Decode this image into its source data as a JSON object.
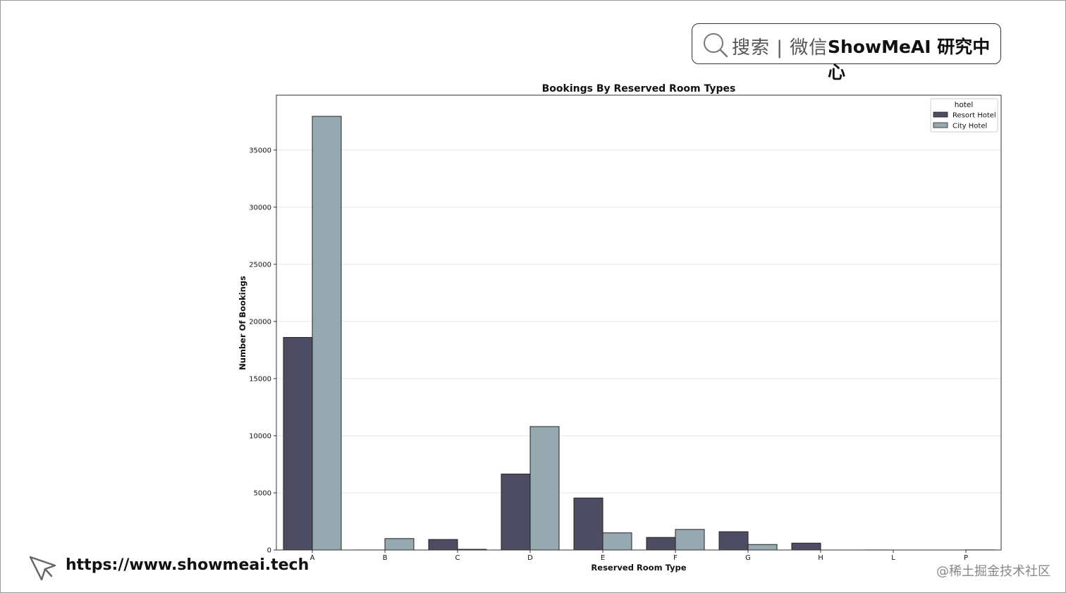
{
  "brand": {
    "search_label": "搜索 | 微信",
    "name": "ShowMeAI 研究中心"
  },
  "footer": {
    "url": "https://www.showmeai.tech",
    "watermark": "@稀土掘金技术社区"
  },
  "colors": {
    "resort": "#4d4c63",
    "city": "#97a9b0",
    "grid": "#e6e6e6",
    "axis": "#333333"
  },
  "chart_data": {
    "type": "bar",
    "title": "Bookings By Reserved Room Types",
    "xlabel": "Reserved Room Type",
    "ylabel": "Number Of Bookings",
    "categories": [
      "A",
      "B",
      "C",
      "D",
      "E",
      "F",
      "G",
      "H",
      "L",
      "P"
    ],
    "series": [
      {
        "name": "Resort Hotel",
        "values": [
          18600,
          3,
          920,
          6650,
          4550,
          1100,
          1600,
          600,
          6,
          2
        ]
      },
      {
        "name": "City Hotel",
        "values": [
          37950,
          1000,
          60,
          10800,
          1500,
          1800,
          480,
          0,
          0,
          10
        ]
      }
    ],
    "yticks": [
      0,
      5000,
      10000,
      15000,
      20000,
      25000,
      30000,
      35000
    ],
    "ylim": [
      0,
      39800
    ],
    "legend": {
      "title": "hotel",
      "placement": "top-right"
    },
    "grid": "y"
  }
}
